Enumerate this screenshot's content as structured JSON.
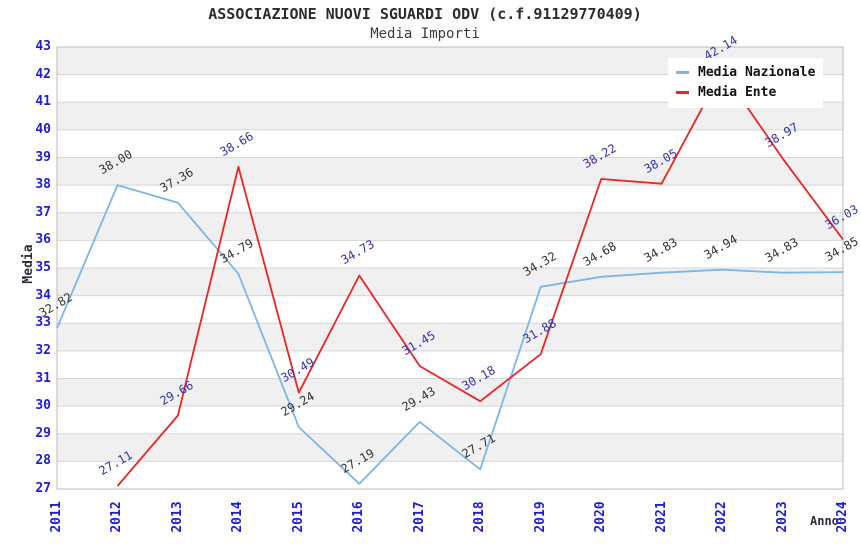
{
  "chart": {
    "title": "ASSOCIAZIONE NUOVI SGUARDI ODV (c.f.91129770409)",
    "subtitle": "Media Importi",
    "y_axis_title": "Media",
    "x_axis_title": "Anno"
  },
  "legend": {
    "items": [
      {
        "label": "Media Nazionale",
        "color": "#7fb4e9"
      },
      {
        "label": "Media Ente",
        "color": "#e92525"
      }
    ]
  },
  "chart_data": {
    "type": "line",
    "title": "ASSOCIAZIONE NUOVI SGUARDI ODV (c.f.91129770409)",
    "subtitle": "Media Importi",
    "xlabel": "Anno",
    "ylabel": "Media",
    "x": [
      2011,
      2012,
      2013,
      2014,
      2015,
      2016,
      2017,
      2018,
      2019,
      2020,
      2021,
      2022,
      2023,
      2024
    ],
    "series": [
      {
        "name": "Media Nazionale",
        "color": "#7fb4e9",
        "label_color": "#333333",
        "values": [
          32.82,
          38.0,
          37.36,
          34.79,
          29.24,
          27.19,
          29.43,
          27.71,
          34.32,
          34.68,
          34.83,
          34.94,
          34.83,
          34.85
        ]
      },
      {
        "name": "Media Ente",
        "color": "#e92525",
        "label_color": "#3232b4",
        "values": [
          null,
          27.11,
          29.66,
          38.66,
          30.49,
          34.73,
          31.45,
          30.18,
          31.88,
          38.22,
          38.05,
          42.14,
          38.97,
          36.03
        ]
      }
    ],
    "ylim": [
      27,
      43
    ],
    "y_ticks": [
      27,
      28,
      29,
      30,
      31,
      32,
      33,
      34,
      35,
      36,
      37,
      38,
      39,
      40,
      41,
      42,
      43
    ],
    "grid": true,
    "legend_position": "top-right",
    "axis_label_color": "#1d1dd6",
    "band_colors": [
      "#f0f0f0",
      "#ffffff"
    ],
    "grid_color": "#d6d6d6",
    "border_color": "#bdbdbd"
  }
}
